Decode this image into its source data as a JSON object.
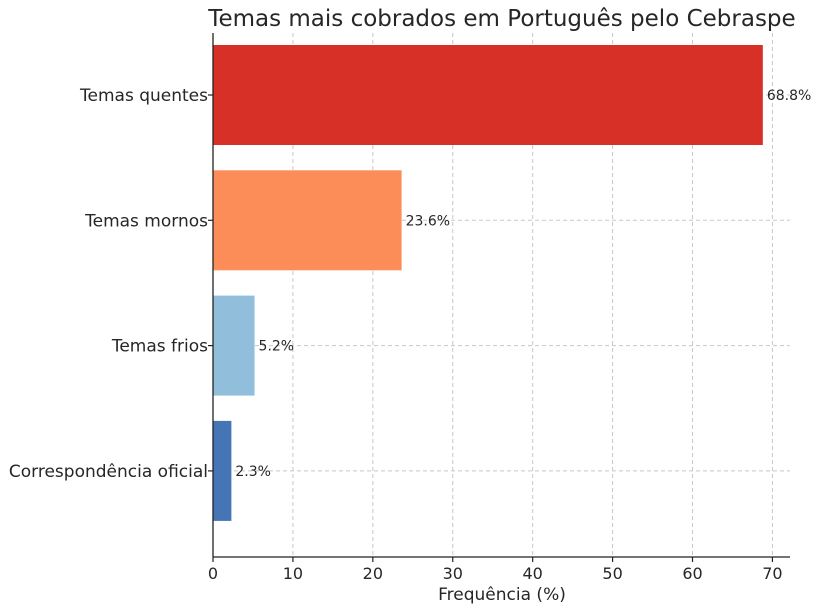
{
  "chart_data": {
    "type": "bar",
    "orientation": "horizontal",
    "title": "Temas mais cobrados em Português pelo Cebraspe",
    "xlabel": "Frequência (%)",
    "ylabel": "",
    "xlim": [
      0,
      72.2
    ],
    "xticks": [
      0,
      10,
      20,
      30,
      40,
      50,
      60,
      70
    ],
    "grid": true,
    "categories": [
      "Temas quentes",
      "Temas mornos",
      "Temas frios",
      "Correspondência oficial"
    ],
    "values": [
      68.8,
      23.6,
      5.2,
      2.3
    ],
    "value_labels": [
      "68.8%",
      "23.6%",
      "5.2%",
      "2.3%"
    ],
    "colors": [
      "#d73027",
      "#fc8d59",
      "#91bfdb",
      "#4575b4"
    ]
  }
}
